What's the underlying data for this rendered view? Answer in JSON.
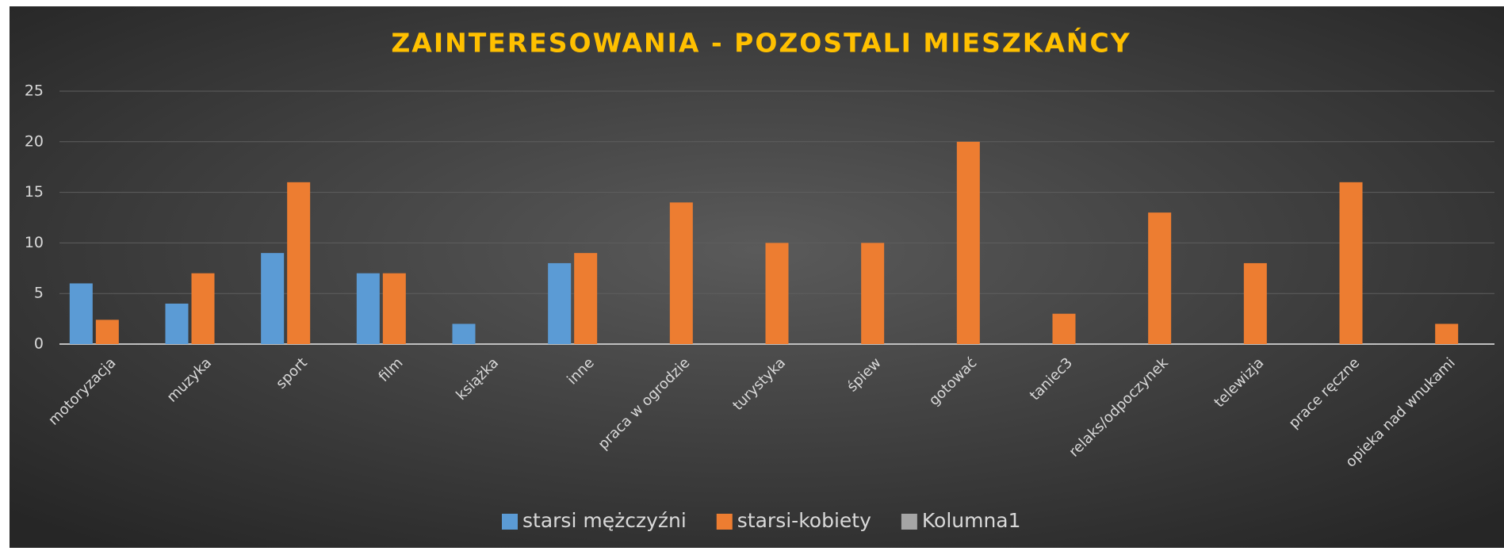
{
  "chart_data": {
    "type": "bar",
    "title": "ZAINTERESOWANIA - POZOSTALI  MIESZKAŃCY",
    "categories": [
      "motoryzacja",
      "muzyka",
      "sport",
      "film",
      "książka",
      "inne",
      "praca w ogrodzie",
      "turystyka",
      "śpiew",
      "gotować",
      "taniec3",
      "relaks/odpoczynek",
      "telewizja",
      "prace ręczne",
      "opieka nad wnukami"
    ],
    "series": [
      {
        "name": "starsi mężczyźni",
        "color": "#5b9bd5",
        "values": [
          6,
          4,
          9,
          7,
          2,
          8,
          null,
          null,
          null,
          null,
          null,
          null,
          null,
          null,
          null
        ]
      },
      {
        "name": "starsi-kobiety",
        "color": "#ed7d31",
        "values": [
          2.4,
          7,
          16,
          7,
          null,
          9,
          14,
          10,
          10,
          20,
          3,
          13,
          8,
          16,
          2
        ]
      },
      {
        "name": "Kolumna1",
        "color": "#a5a5a5",
        "values": [
          null,
          null,
          null,
          null,
          null,
          null,
          null,
          null,
          null,
          null,
          null,
          null,
          null,
          null,
          null
        ]
      }
    ],
    "ylim": [
      0,
      25
    ],
    "yticks": [
      0,
      5,
      10,
      15,
      20,
      25
    ],
    "grid": true,
    "legend": "bottom"
  }
}
